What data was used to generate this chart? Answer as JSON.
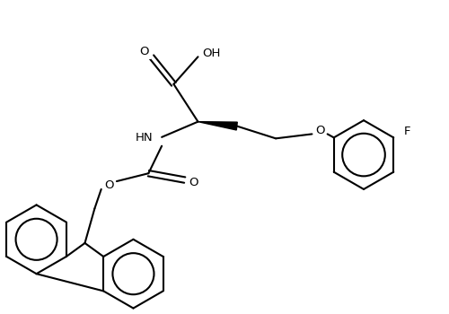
{
  "background_color": "#ffffff",
  "line_color": "#000000",
  "line_width": 1.5,
  "font_size": 9.5,
  "figsize": [
    5.0,
    3.5
  ],
  "dpi": 100,
  "xlim": [
    0,
    10
  ],
  "ylim": [
    0,
    7
  ]
}
